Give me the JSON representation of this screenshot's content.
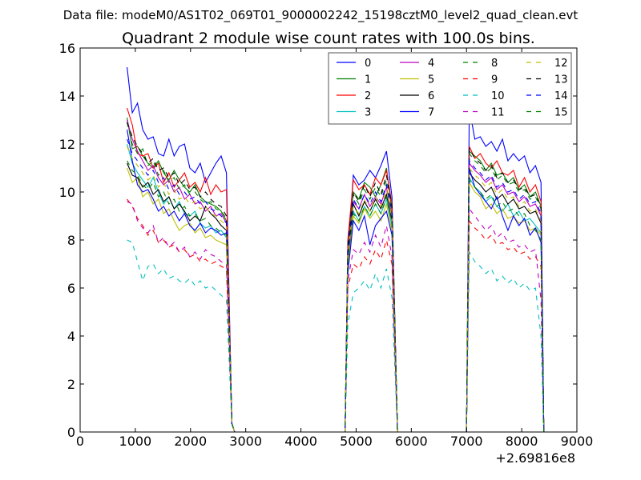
{
  "chart_data": {
    "type": "line",
    "suptitle": "Data file: modeM0/AS1T02_069T01_9000002242_15198cztM0_level2_quad_clean.evt",
    "title": "Quadrant 2 module wise count rates with 100.0s bins.",
    "xlabel": "",
    "ylabel": "",
    "x_offset_label": "+2.69816e8",
    "xlim": [
      0,
      9000
    ],
    "ylim": [
      0,
      16
    ],
    "x_ticks": [
      "0",
      "1000",
      "2000",
      "3000",
      "4000",
      "5000",
      "6000",
      "7000",
      "8000",
      "9000"
    ],
    "y_ticks": [
      "0",
      "2",
      "4",
      "6",
      "8",
      "10",
      "12",
      "14",
      "16"
    ],
    "legend_position": "top-right",
    "segments": [
      {
        "start": 850,
        "end": 2650,
        "low_at": 2750
      },
      {
        "start": 4850,
        "end": 5650,
        "low_at": 5750
      },
      {
        "start": 7050,
        "end": 8350,
        "low_at": 8400
      }
    ],
    "series": [
      {
        "name": "0",
        "color": "#0000ff",
        "dash": "solid",
        "segments": [
          [
            15.2,
            13.3,
            13.7,
            12.6,
            12.2,
            12.3,
            11.6,
            11.5,
            12.2,
            11.5,
            11.9,
            12.0,
            11.0,
            10.8,
            11.2,
            10.4,
            10.8,
            11.2,
            11.5,
            10.8
          ],
          [
            7.5,
            10.7,
            10.3,
            10.5,
            10.9,
            10.6,
            11.1,
            11.7,
            9.8
          ],
          [
            13.5,
            12.2,
            12.3,
            11.9,
            12.1,
            11.7,
            12.2,
            11.3,
            11.6,
            11.3,
            11.5,
            10.8,
            11.1,
            10.4
          ]
        ]
      },
      {
        "name": "1",
        "color": "#008000",
        "dash": "solid",
        "segments": [
          [
            13.1,
            11.8,
            11.9,
            11.5,
            11.2,
            11.0,
            11.3,
            10.8,
            10.5,
            10.9,
            10.5,
            10.2,
            10.0,
            10.3,
            9.8,
            9.6,
            9.5,
            9.4,
            9.2,
            8.8
          ],
          [
            7.8,
            10.0,
            9.7,
            10.4,
            10.2,
            9.8,
            10.3,
            11.0,
            9.2
          ],
          [
            11.7,
            11.5,
            11.3,
            10.9,
            11.2,
            10.7,
            10.8,
            10.4,
            10.6,
            10.1,
            10.3,
            9.8,
            10.0,
            9.4
          ]
        ]
      },
      {
        "name": "2",
        "color": "#ff0000",
        "dash": "solid",
        "segments": [
          [
            13.5,
            12.8,
            11.6,
            11.5,
            11.6,
            11.0,
            11.2,
            10.4,
            10.8,
            10.2,
            10.5,
            10.8,
            10.2,
            10.4,
            10.0,
            10.6,
            9.9,
            10.3,
            10.0,
            10.1
          ],
          [
            8.0,
            10.5,
            10.1,
            10.3,
            9.9,
            10.6,
            10.3,
            10.9,
            9.5
          ],
          [
            11.9,
            11.4,
            11.6,
            11.2,
            11.0,
            11.3,
            10.8,
            10.7,
            10.9,
            10.2,
            10.6,
            10.0,
            10.3,
            9.6
          ]
        ]
      },
      {
        "name": "3",
        "color": "#00bfbf",
        "dash": "solid",
        "segments": [
          [
            12.0,
            11.2,
            10.8,
            10.5,
            10.2,
            10.6,
            10.0,
            9.5,
            9.8,
            9.3,
            9.6,
            9.1,
            9.0,
            9.2,
            8.7,
            8.5,
            8.6,
            8.3,
            8.4,
            8.1
          ],
          [
            7.0,
            9.2,
            8.8,
            9.4,
            9.0,
            9.5,
            9.1,
            9.7,
            8.6
          ],
          [
            10.6,
            10.2,
            10.0,
            9.6,
            9.8,
            9.4,
            9.2,
            9.5,
            9.0,
            9.2,
            8.8,
            8.9,
            8.6,
            8.3
          ]
        ]
      },
      {
        "name": "4",
        "color": "#bf00bf",
        "dash": "solid",
        "segments": [
          [
            13.0,
            12.2,
            11.7,
            11.3,
            10.9,
            11.1,
            10.6,
            10.3,
            10.5,
            10.0,
            10.2,
            9.7,
            9.9,
            9.5,
            9.6,
            9.2,
            9.4,
            9.0,
            9.1,
            8.7
          ],
          [
            7.6,
            9.6,
            9.3,
            9.9,
            9.4,
            9.8,
            9.5,
            10.2,
            9.0
          ],
          [
            11.2,
            10.9,
            10.7,
            10.4,
            10.6,
            10.1,
            10.3,
            9.9,
            10.0,
            9.6,
            9.8,
            9.4,
            9.5,
            9.0
          ]
        ]
      },
      {
        "name": "5",
        "color": "#bfbf00",
        "dash": "solid",
        "segments": [
          [
            11.0,
            10.4,
            10.6,
            9.8,
            10.0,
            9.5,
            9.7,
            9.1,
            9.3,
            8.8,
            8.4,
            8.6,
            8.7,
            8.3,
            8.5,
            8.1,
            8.2,
            8.0,
            7.9,
            7.8
          ],
          [
            6.9,
            9.0,
            8.7,
            9.3,
            8.9,
            9.2,
            8.8,
            9.5,
            8.4
          ],
          [
            10.4,
            10.0,
            9.8,
            9.3,
            9.5,
            9.1,
            9.3,
            8.9,
            9.0,
            8.7,
            8.8,
            8.4,
            8.5,
            8.2
          ]
        ]
      },
      {
        "name": "6",
        "color": "#000000",
        "dash": "solid",
        "segments": [
          [
            11.2,
            10.7,
            10.6,
            10.2,
            10.4,
            9.9,
            10.1,
            9.6,
            9.8,
            9.3,
            9.5,
            9.2,
            8.8,
            9.0,
            8.8,
            9.4,
            9.1,
            8.9,
            8.6,
            8.4
          ],
          [
            7.2,
            9.5,
            9.0,
            9.6,
            9.2,
            9.7,
            9.3,
            9.9,
            8.8
          ],
          [
            10.8,
            10.5,
            10.3,
            10.0,
            10.2,
            9.7,
            9.9,
            9.5,
            9.7,
            9.3,
            9.4,
            9.1,
            9.2,
            8.7
          ]
        ]
      },
      {
        "name": "7",
        "color": "#0000ff",
        "dash": "solid",
        "segments": [
          [
            12.6,
            11.3,
            10.3,
            10.0,
            10.1,
            9.7,
            9.2,
            9.4,
            9.0,
            9.2,
            8.8,
            9.1,
            8.6,
            8.4,
            8.7,
            8.3,
            8.5,
            8.4,
            8.2,
            8.3
          ],
          [
            6.6,
            8.8,
            8.4,
            9.0,
            7.8,
            8.6,
            8.9,
            9.2,
            8.2
          ],
          [
            11.0,
            10.2,
            9.9,
            9.6,
            9.3,
            9.8,
            9.0,
            8.4,
            9.0,
            8.6,
            8.9,
            8.2,
            8.5,
            7.9
          ]
        ]
      },
      {
        "name": "8",
        "color": "#008000",
        "dash": "dashed",
        "segments": [
          [
            12.9,
            12.0,
            11.6,
            11.8,
            11.1,
            11.3,
            10.7,
            10.9,
            10.4,
            10.6,
            10.1,
            10.3,
            9.9,
            10.0,
            9.7,
            9.5,
            9.6,
            9.3,
            9.2,
            8.9
          ],
          [
            7.7,
            9.9,
            9.5,
            10.1,
            9.7,
            10.2,
            9.8,
            10.5,
            9.3
          ],
          [
            11.6,
            11.3,
            11.1,
            10.8,
            11.0,
            10.5,
            10.7,
            10.3,
            10.4,
            10.0,
            10.1,
            9.7,
            9.8,
            9.3
          ]
        ]
      },
      {
        "name": "9",
        "color": "#ff0000",
        "dash": "dashed",
        "segments": [
          [
            9.7,
            9.4,
            8.9,
            8.6,
            8.2,
            8.4,
            7.9,
            8.0,
            7.7,
            7.8,
            7.5,
            7.6,
            7.3,
            7.4,
            7.1,
            7.2,
            7.0,
            7.1,
            6.9,
            6.8
          ],
          [
            6.0,
            7.0,
            6.8,
            7.3,
            7.0,
            7.6,
            7.2,
            8.0,
            7.0
          ],
          [
            8.8,
            8.5,
            8.3,
            8.0,
            8.2,
            7.8,
            7.9,
            7.6,
            7.7,
            7.4,
            7.5,
            7.2,
            7.3,
            6.9
          ]
        ]
      },
      {
        "name": "10",
        "color": "#00bfbf",
        "dash": "dashed",
        "segments": [
          [
            8.0,
            7.9,
            7.1,
            6.3,
            6.9,
            7.0,
            6.6,
            6.8,
            6.4,
            6.5,
            6.3,
            6.2,
            6.4,
            6.1,
            6.3,
            6.0,
            6.1,
            5.9,
            5.7,
            5.5
          ],
          [
            4.5,
            5.8,
            6.0,
            6.3,
            5.9,
            6.6,
            6.0,
            6.8,
            5.6
          ],
          [
            7.5,
            7.1,
            6.9,
            6.6,
            6.8,
            6.3,
            6.5,
            6.2,
            6.4,
            6.0,
            6.2,
            5.9,
            6.0,
            4.0
          ]
        ]
      },
      {
        "name": "11",
        "color": "#bf00bf",
        "dash": "dashed",
        "segments": [
          [
            9.6,
            9.5,
            8.8,
            8.5,
            8.3,
            8.6,
            7.9,
            8.1,
            7.7,
            7.9,
            7.5,
            7.7,
            7.3,
            7.5,
            7.2,
            7.6,
            7.4,
            7.3,
            7.1,
            7.0
          ],
          [
            6.3,
            7.6,
            7.4,
            7.9,
            7.5,
            8.2,
            7.7,
            8.6,
            7.3
          ],
          [
            9.3,
            9.0,
            8.7,
            8.4,
            8.6,
            8.1,
            8.3,
            7.9,
            8.0,
            7.7,
            7.8,
            7.5,
            7.6,
            5.5
          ]
        ]
      },
      {
        "name": "12",
        "color": "#bfbf00",
        "dash": "dashed",
        "segments": [
          [
            11.9,
            11.4,
            11.1,
            10.8,
            10.5,
            10.7,
            10.2,
            10.4,
            9.9,
            10.1,
            9.7,
            9.8,
            9.5,
            9.6,
            9.3,
            9.4,
            9.1,
            9.0,
            8.8,
            8.6
          ],
          [
            7.4,
            9.4,
            9.1,
            9.7,
            9.2,
            9.8,
            9.4,
            10.1,
            8.9
          ],
          [
            11.0,
            10.7,
            10.5,
            10.2,
            10.4,
            9.9,
            10.1,
            9.7,
            9.8,
            9.4,
            9.6,
            9.2,
            9.3,
            8.8
          ]
        ]
      },
      {
        "name": "13",
        "color": "#000000",
        "dash": "dashed",
        "segments": [
          [
            12.9,
            12.3,
            11.9,
            11.6,
            11.2,
            11.4,
            10.9,
            11.0,
            10.6,
            10.8,
            10.3,
            10.5,
            10.1,
            10.2,
            9.8,
            10.0,
            9.7,
            9.5,
            9.4,
            9.0
          ],
          [
            7.8,
            10.0,
            9.6,
            10.3,
            9.8,
            10.4,
            9.9,
            10.7,
            9.4
          ],
          [
            11.8,
            11.4,
            11.2,
            10.9,
            11.1,
            10.6,
            10.8,
            10.4,
            10.5,
            10.1,
            10.2,
            9.8,
            9.9,
            9.4
          ]
        ]
      },
      {
        "name": "14",
        "color": "#0000ff",
        "dash": "dashed",
        "segments": [
          [
            12.2,
            11.6,
            11.3,
            11.0,
            10.7,
            10.9,
            10.4,
            10.6,
            10.1,
            10.3,
            9.9,
            10.0,
            9.7,
            9.8,
            9.5,
            9.6,
            9.3,
            9.2,
            9.0,
            8.7
          ],
          [
            7.5,
            9.7,
            9.3,
            9.9,
            9.5,
            10.0,
            9.6,
            10.3,
            9.1
          ],
          [
            11.3,
            11.0,
            10.8,
            10.5,
            10.7,
            10.2,
            10.4,
            10.0,
            10.1,
            9.7,
            9.9,
            9.5,
            9.6,
            9.1
          ]
        ]
      },
      {
        "name": "15",
        "color": "#008000",
        "dash": "dashed",
        "segments": [
          [
            11.3,
            10.9,
            10.7,
            10.3,
            10.1,
            10.4,
            9.8,
            10.0,
            9.5,
            9.7,
            9.2,
            9.4,
            9.0,
            9.1,
            8.8,
            8.9,
            8.6,
            8.5,
            8.3,
            8.2
          ],
          [
            7.2,
            9.1,
            8.8,
            9.4,
            9.0,
            9.5,
            9.1,
            9.8,
            8.7
          ],
          [
            10.5,
            10.2,
            10.0,
            9.7,
            9.9,
            9.4,
            9.6,
            9.2,
            9.3,
            9.0,
            9.1,
            8.6,
            8.4,
            8.0
          ]
        ]
      }
    ]
  }
}
